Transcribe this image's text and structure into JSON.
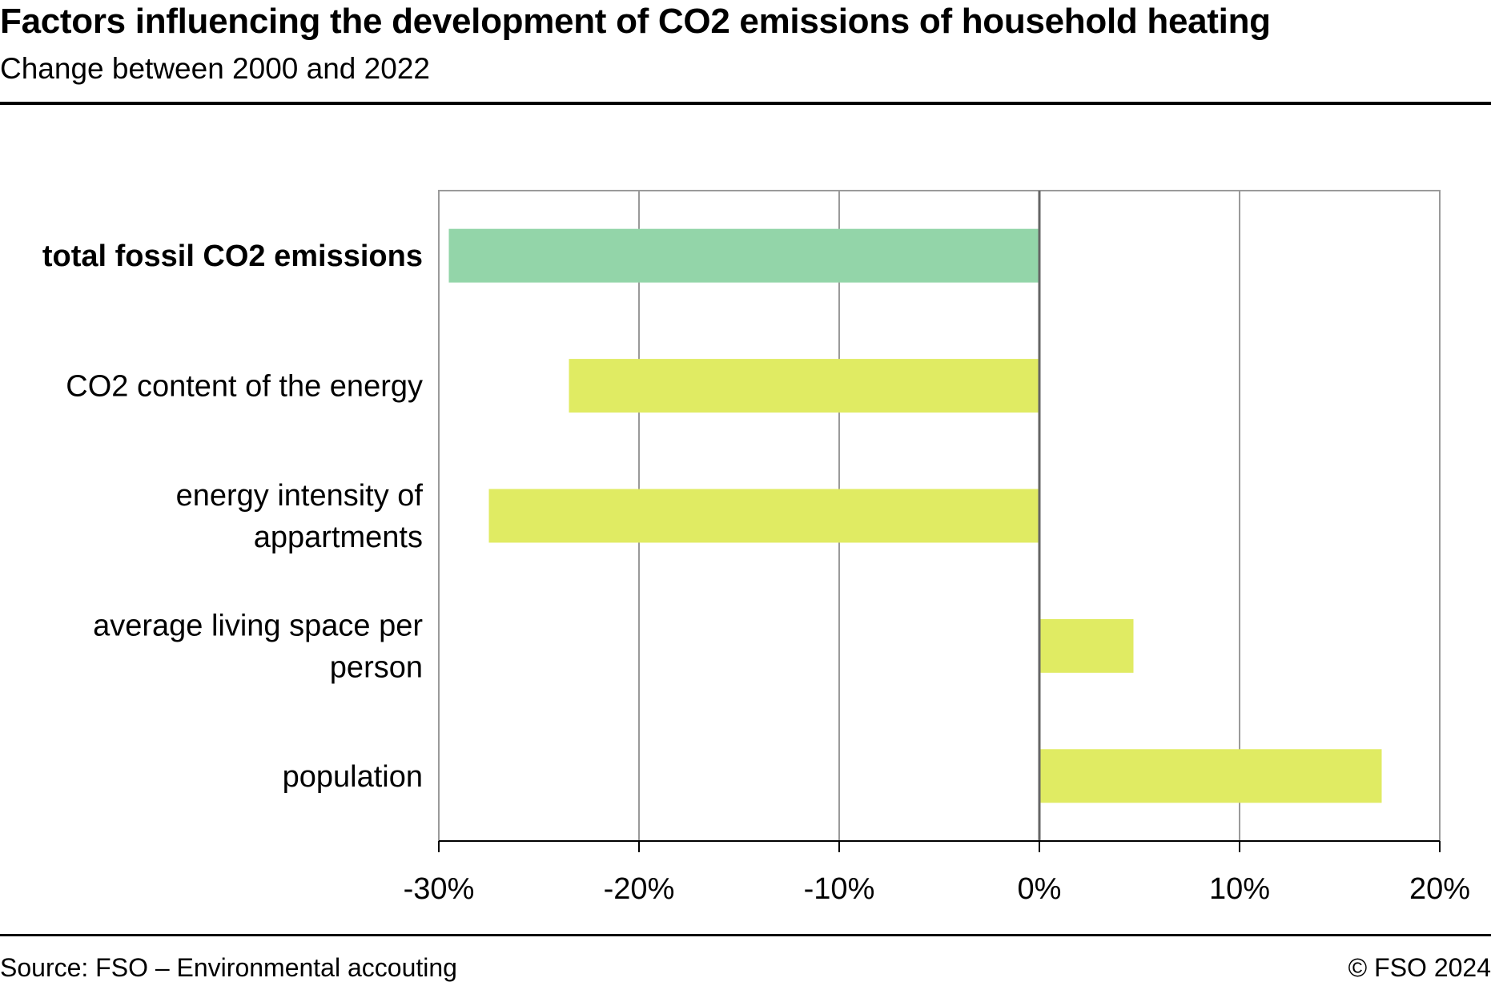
{
  "header": {
    "title": "Factors influencing the development of CO2 emissions of household heating",
    "subtitle": "Change between 2000 and 2022"
  },
  "footer": {
    "source": "Source: FSO – Environmental accouting",
    "copyright": "© FSO 2024"
  },
  "chart_data": {
    "type": "bar",
    "orientation": "horizontal",
    "categories": [
      "total fossil CO2 emissions",
      "CO2 content of the energy",
      "energy intensity of appartments",
      "average living space per person",
      "population"
    ],
    "category_label_lines": [
      [
        "total fossil CO2 emissions"
      ],
      [
        "CO2 content of the energy"
      ],
      [
        "energy intensity of",
        "appartments"
      ],
      [
        "average living space per",
        "person"
      ],
      [
        "population"
      ]
    ],
    "bold_categories": [
      "total fossil CO2 emissions"
    ],
    "values": [
      -29.5,
      -23.5,
      -27.5,
      4.7,
      17.1
    ],
    "colors": [
      "#93d5a9",
      "#e0eb63",
      "#e0eb63",
      "#e0eb63",
      "#e0eb63"
    ],
    "xlim": [
      -30,
      20
    ],
    "xticks": [
      -30,
      -20,
      -10,
      0,
      10,
      20
    ],
    "xtick_labels": [
      "-30%",
      "-20%",
      "-10%",
      "0%",
      "10%",
      "20%"
    ],
    "grid": true,
    "grid_color": "#9a9a9a",
    "zero_line_color": "#666666"
  }
}
